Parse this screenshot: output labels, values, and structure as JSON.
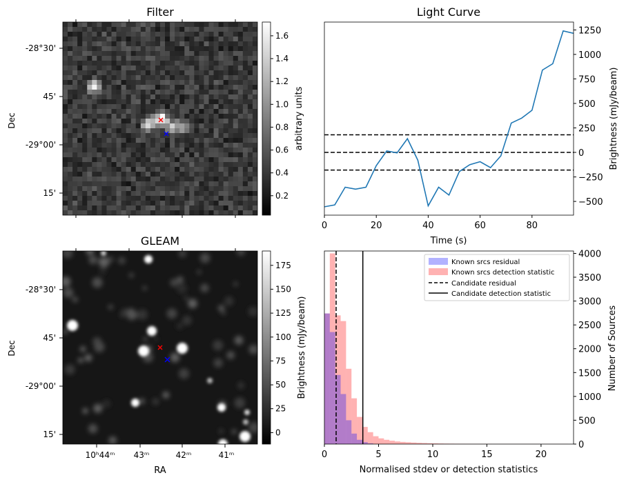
{
  "chart_data": [
    {
      "panel": "filter",
      "type": "heatmap",
      "title": "Filter",
      "xlabel": "",
      "ylabel": "Dec",
      "y_ticks": [
        "-28°30'",
        "45'",
        "-29°00'",
        "15'"
      ],
      "colorbar": {
        "label": "arbitrary units",
        "ticks": [
          "0.2",
          "0.4",
          "0.6",
          "0.8",
          "1.0",
          "1.2",
          "1.4",
          "1.6"
        ],
        "range": [
          0.03,
          1.72
        ],
        "colormap": "gray"
      },
      "markers": [
        {
          "symbol": "×",
          "color": "#ff0000"
        },
        {
          "symbol": "×",
          "color": "#0000ff"
        }
      ],
      "grid": false
    },
    {
      "panel": "gleam",
      "type": "heatmap",
      "title": "GLEAM",
      "xlabel": "RA",
      "ylabel": "Dec",
      "x_ticks": [
        "10ʰ44ᵐ",
        "43ᵐ",
        "42ᵐ",
        "41ᵐ"
      ],
      "y_ticks": [
        "-28°30'",
        "45'",
        "-29°00'",
        "15'"
      ],
      "colorbar": {
        "label": "Brightness (mJy/beam)",
        "ticks": [
          "0",
          "25",
          "50",
          "75",
          "100",
          "125",
          "150",
          "175"
        ],
        "range": [
          -12,
          190
        ],
        "colormap": "gray"
      },
      "markers": [
        {
          "symbol": "×",
          "color": "#ff0000"
        },
        {
          "symbol": "×",
          "color": "#0000ff"
        }
      ],
      "grid": false
    },
    {
      "panel": "light_curve",
      "type": "line",
      "title": "Light Curve",
      "xlabel": "Time (s)",
      "ylabel": "Brightness (mJy/beam)",
      "xlim": [
        0,
        96
      ],
      "ylim": [
        -640,
        1330
      ],
      "x_ticks": [
        "0",
        "20",
        "40",
        "60",
        "80"
      ],
      "y_ticks": [
        "−500",
        "−250",
        "0",
        "250",
        "500",
        "750",
        "1000",
        "1250"
      ],
      "series": [
        {
          "color": "#1f77b4",
          "x": [
            0,
            4,
            8,
            12,
            16,
            20,
            24,
            28,
            32,
            36,
            40,
            44,
            48,
            52,
            56,
            60,
            64,
            68,
            72,
            76,
            80,
            84,
            88,
            92,
            96
          ],
          "y": [
            -555,
            -535,
            -355,
            -375,
            -355,
            -135,
            15,
            -5,
            140,
            -80,
            -545,
            -355,
            -435,
            -195,
            -125,
            -95,
            -155,
            -35,
            300,
            350,
            430,
            840,
            905,
            1240,
            1215
          ]
        }
      ],
      "hlines": [
        {
          "y": 180,
          "style": "dashed"
        },
        {
          "y": 0,
          "style": "dashed"
        },
        {
          "y": -180,
          "style": "dashed"
        }
      ],
      "grid": false
    },
    {
      "panel": "histogram",
      "type": "bar",
      "title": "",
      "xlabel": "Normalised stdev or detection statistics",
      "ylabel": "Number of Sources",
      "xlim": [
        0,
        23
      ],
      "ylim": [
        0,
        4050
      ],
      "x_ticks": [
        "0",
        "5",
        "10",
        "15",
        "20"
      ],
      "y_ticks": [
        "0",
        "500",
        "1000",
        "1500",
        "2000",
        "2500",
        "3000",
        "3500",
        "4000"
      ],
      "bin_width": 0.5,
      "series": [
        {
          "name": "Known srcs residual",
          "color": "#0000ff",
          "bin_starts": [
            0.0,
            0.5,
            1.0,
            1.5,
            2.0,
            2.5,
            3.0,
            3.5,
            4.0
          ],
          "counts": [
            2740,
            2350,
            1450,
            1050,
            500,
            220,
            90,
            40,
            15
          ]
        },
        {
          "name": "Known srcs detection statistic",
          "color": "#ff0000",
          "bin_starts": [
            0.0,
            0.5,
            1.0,
            1.5,
            2.0,
            2.5,
            3.0,
            3.5,
            4.0,
            4.5,
            5.0,
            5.5,
            6.0,
            6.5,
            7.0,
            7.5,
            8.0,
            8.5,
            9.0,
            9.5,
            10.0,
            10.5,
            11.0,
            11.5,
            12.0,
            12.5,
            13.0,
            13.5,
            14.0,
            14.5,
            15.0,
            15.5,
            16.0,
            16.5,
            17.0,
            17.5,
            18.0,
            18.5,
            19.0,
            19.5,
            20.0,
            20.5,
            21.0,
            21.5,
            22.0
          ],
          "counts": [
            2740,
            4000,
            2700,
            2580,
            1580,
            960,
            570,
            360,
            250,
            165,
            120,
            90,
            70,
            55,
            45,
            38,
            32,
            26,
            22,
            18,
            15,
            12,
            10,
            9,
            8,
            7,
            6,
            5,
            5,
            4,
            4,
            3,
            3,
            3,
            3,
            2,
            2,
            2,
            2,
            2,
            2,
            2,
            2,
            2,
            2
          ]
        }
      ],
      "vlines": [
        {
          "name": "Candidate residual",
          "x": 1.08,
          "style": "dashed"
        },
        {
          "name": "Candidate detection statistic",
          "x": 3.55,
          "style": "solid"
        }
      ],
      "legend": "top-right",
      "grid": false
    }
  ]
}
